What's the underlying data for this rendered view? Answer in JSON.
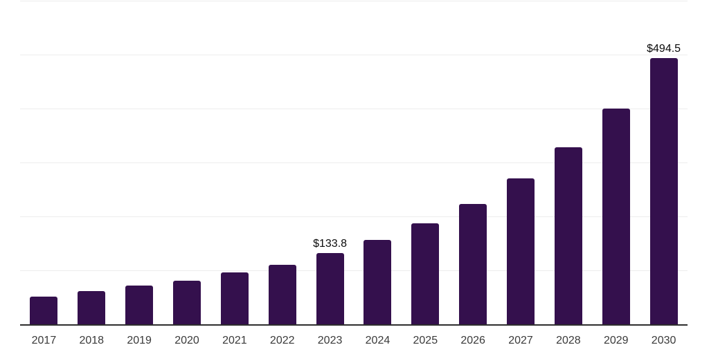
{
  "chart_data": {
    "type": "bar",
    "title": "",
    "xlabel": "",
    "ylabel": "",
    "categories": [
      "2017",
      "2018",
      "2019",
      "2020",
      "2021",
      "2022",
      "2023",
      "2024",
      "2025",
      "2026",
      "2027",
      "2028",
      "2029",
      "2030"
    ],
    "values": [
      53,
      63,
      73,
      82,
      97,
      112,
      133.8,
      158,
      188,
      225,
      272,
      329,
      401,
      494.5
    ],
    "data_labels": [
      "",
      "",
      "",
      "",
      "",
      "",
      "$133.8",
      "",
      "",
      "",
      "",
      "",
      "",
      "$494.5"
    ],
    "ylim": [
      0,
      600
    ],
    "gridline_step": 100,
    "grid": true,
    "legend": false,
    "y_tick_labels_shown": false,
    "colors": {
      "bar": "#34104D",
      "axis_line": "#2e2e2e",
      "gridline": "#ededed",
      "tick_label": "#3a3a3a",
      "data_label": "#0a0a0a",
      "background": "#ffffff"
    }
  }
}
